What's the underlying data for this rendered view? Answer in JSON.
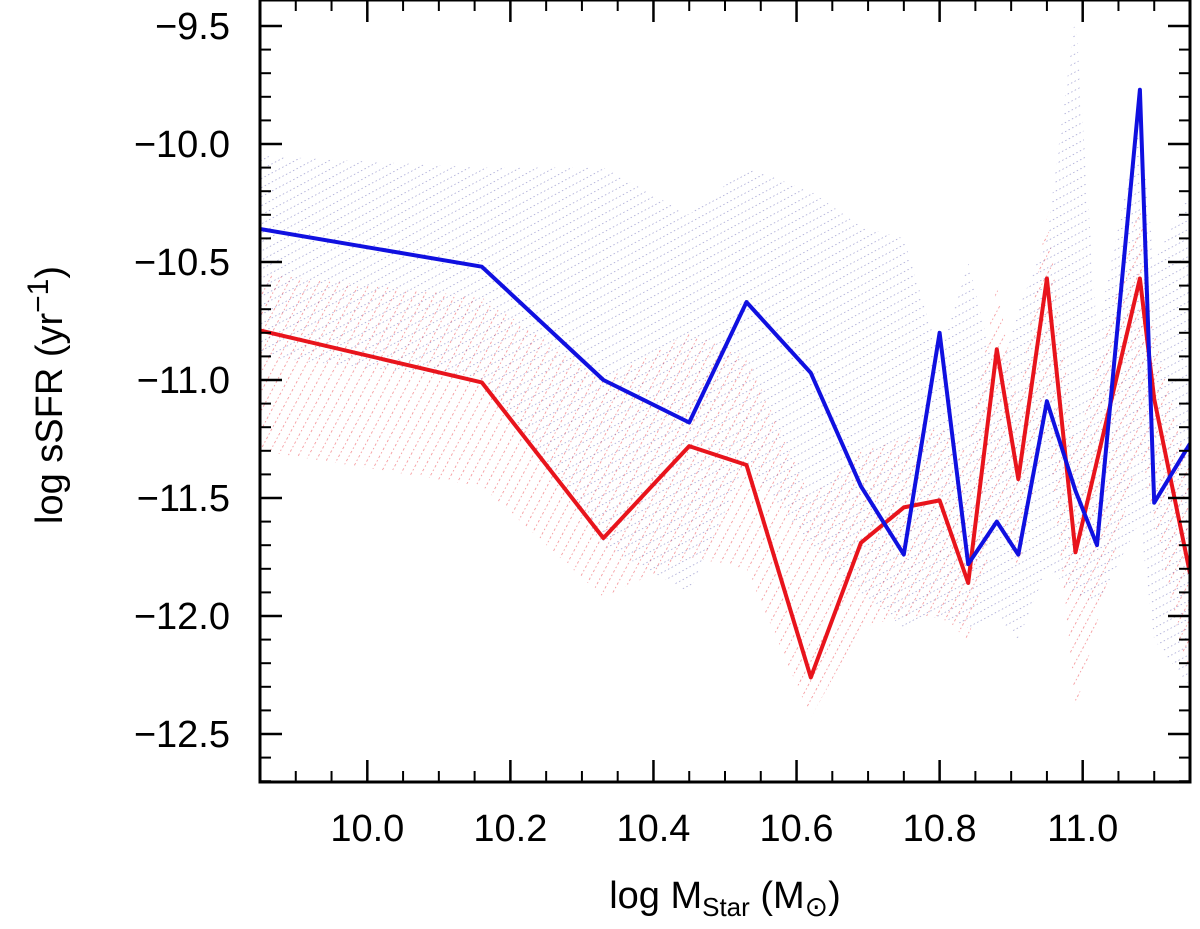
{
  "chart_data": {
    "type": "line",
    "xlabel": {
      "main": "log M",
      "sub": "Star",
      "unit_open": " (M",
      "unit_sym": "⊙",
      "unit_close": ")"
    },
    "ylabel": {
      "main": "log sSFR (yr",
      "sup": "−1",
      "close": ")"
    },
    "xlim": [
      9.85,
      11.15
    ],
    "ylim": [
      -12.75,
      -9.5
    ],
    "xticks": [
      10.0,
      10.2,
      10.4,
      10.6,
      10.8,
      11.0
    ],
    "xtick_labels": [
      "10.0",
      "10.2",
      "10.4",
      "10.6",
      "10.8",
      "11.0"
    ],
    "yticks": [
      -9.5,
      -10.0,
      -10.5,
      -11.0,
      -11.5,
      -12.0,
      -12.5
    ],
    "ytick_labels": [
      "−9.5",
      "−10.0",
      "−10.5",
      "−11.0",
      "−11.5",
      "−12.0",
      "−12.5"
    ],
    "series": [
      {
        "name": "red",
        "color": "#e8141c",
        "x": [
          9.85,
          10.16,
          10.33,
          10.45,
          10.53,
          10.62,
          10.69,
          10.75,
          10.8,
          10.84,
          10.88,
          10.91,
          10.95,
          10.99,
          11.08,
          11.1,
          11.15
        ],
        "y": [
          -10.79,
          -11.01,
          -11.67,
          -11.28,
          -11.36,
          -12.26,
          -11.69,
          -11.54,
          -11.51,
          -11.86,
          -10.87,
          -11.42,
          -10.57,
          -11.73,
          -10.57,
          -11.08,
          -11.82
        ],
        "band_upper": [
          -10.55,
          -10.65,
          -11.0,
          -10.8,
          -10.9,
          -11.5,
          -11.3,
          -11.25,
          -11.2,
          -11.3,
          -10.6,
          -11.1,
          -10.3,
          -11.3,
          -10.25,
          -10.8,
          -11.4
        ],
        "band_lower": [
          -11.3,
          -11.45,
          -11.92,
          -11.75,
          -11.8,
          -12.43,
          -12.05,
          -12.0,
          -12.0,
          -12.1,
          -11.6,
          -11.8,
          -11.2,
          -12.4,
          -11.3,
          -11.6,
          -12.3
        ]
      },
      {
        "name": "blue",
        "color": "#1010e0",
        "x": [
          9.85,
          10.16,
          10.33,
          10.45,
          10.53,
          10.62,
          10.69,
          10.75,
          10.8,
          10.84,
          10.88,
          10.91,
          10.95,
          10.99,
          11.02,
          11.08,
          11.1,
          11.15
        ],
        "y": [
          -10.36,
          -10.52,
          -11.0,
          -11.18,
          -10.67,
          -10.97,
          -11.45,
          -11.74,
          -10.8,
          -11.78,
          -11.6,
          -11.74,
          -11.09,
          -11.47,
          -11.7,
          -9.77,
          -11.52,
          -11.27
        ],
        "band_upper": [
          -10.05,
          -10.1,
          -10.1,
          -10.3,
          -10.1,
          -10.2,
          -10.35,
          -10.4,
          -10.9,
          -10.5,
          -11.0,
          -10.7,
          -10.4,
          -9.45,
          -10.8,
          -9.9,
          -10.5,
          -10.2
        ],
        "band_lower": [
          -10.9,
          -11.0,
          -11.7,
          -11.9,
          -11.35,
          -11.7,
          -11.9,
          -12.05,
          -12.0,
          -12.05,
          -12.0,
          -12.1,
          -11.8,
          -11.9,
          -11.95,
          -11.6,
          -12.1,
          -12.3
        ]
      }
    ]
  }
}
